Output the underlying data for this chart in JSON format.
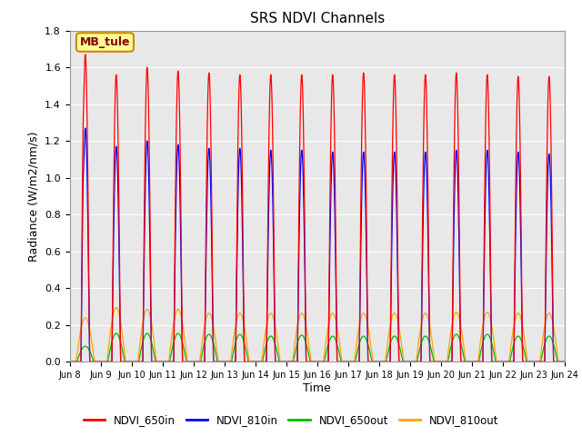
{
  "title": "SRS NDVI Channels",
  "ylabel": "Radiance (W/m2/nm/s)",
  "xlabel": "Time",
  "annotation": "MB_tule",
  "ylim": [
    0.0,
    1.8
  ],
  "colors": {
    "NDVI_650in": "#ff0000",
    "NDVI_810in": "#0000ff",
    "NDVI_650out": "#00bb00",
    "NDVI_810out": "#ffa500"
  },
  "legend_labels": [
    "NDVI_650in",
    "NDVI_810in",
    "NDVI_650out",
    "NDVI_810out"
  ],
  "bg_color": "#e8e8e8",
  "grid_color": "#ffffff",
  "annotation_bg": "#ffff99",
  "annotation_border": "#cc8800",
  "annotation_text_color": "#880000",
  "num_days": 16,
  "samples_per_day": 1440
}
